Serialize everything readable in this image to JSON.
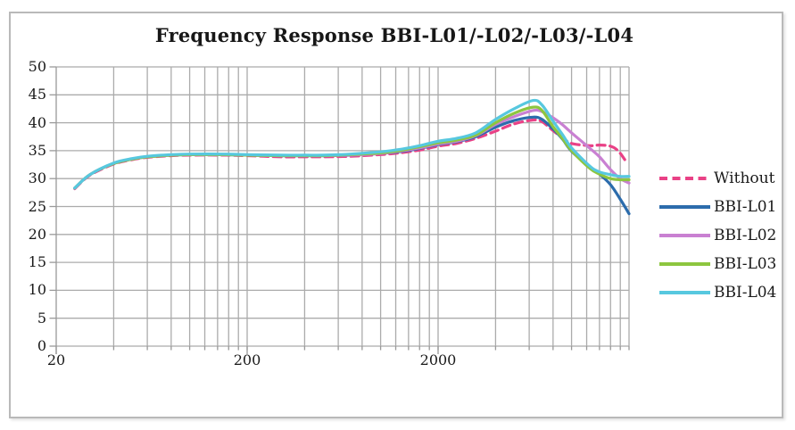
{
  "title": "Frequency Response BBI-L01/-L02/-L03/-L04",
  "chart_data": {
    "type": "line",
    "title": "Frequency Response BBI-L01/-L02/-L03/-L04",
    "x_scale": "log",
    "x_unit": "Hz",
    "x_range": [
      20,
      20000
    ],
    "y_range": [
      0,
      50
    ],
    "y_tick_step": 5,
    "grid": true,
    "legend_position": "right",
    "x_tick_labels": [
      "20",
      "200",
      "2000"
    ],
    "x_tick_values": [
      20,
      200,
      2000
    ],
    "y_tick_labels": [
      "50",
      "45",
      "40",
      "35",
      "30",
      "25",
      "20",
      "15",
      "10",
      "5",
      "0"
    ],
    "grid_color": "#ababab",
    "axis_color": "#999999",
    "text_color": "#1a1a1a",
    "series": [
      {
        "name": "Without",
        "color": "#E94186",
        "line_style": "dashed",
        "points": [
          [
            25,
            28.2
          ],
          [
            30,
            30.6
          ],
          [
            40,
            32.6
          ],
          [
            50,
            33.4
          ],
          [
            60,
            33.8
          ],
          [
            80,
            34.1
          ],
          [
            100,
            34.2
          ],
          [
            150,
            34.2
          ],
          [
            200,
            34.1
          ],
          [
            300,
            33.9
          ],
          [
            400,
            33.9
          ],
          [
            500,
            33.9
          ],
          [
            700,
            34.0
          ],
          [
            1000,
            34.3
          ],
          [
            1250,
            34.6
          ],
          [
            1600,
            35.1
          ],
          [
            2000,
            35.8
          ],
          [
            2500,
            36.3
          ],
          [
            3150,
            37.2
          ],
          [
            4000,
            38.5
          ],
          [
            5000,
            39.8
          ],
          [
            6300,
            40.5
          ],
          [
            7000,
            40.2
          ],
          [
            8000,
            38.6
          ],
          [
            9000,
            37.3
          ],
          [
            10000,
            36.3
          ],
          [
            12500,
            35.9
          ],
          [
            14000,
            36.0
          ],
          [
            16000,
            35.8
          ],
          [
            17500,
            35.0
          ],
          [
            19000,
            33.4
          ]
        ]
      },
      {
        "name": "BBI-L01",
        "color": "#2C6CAC",
        "line_style": "solid",
        "points": [
          [
            25,
            28.3
          ],
          [
            30,
            30.7
          ],
          [
            40,
            32.7
          ],
          [
            50,
            33.5
          ],
          [
            60,
            33.9
          ],
          [
            80,
            34.2
          ],
          [
            100,
            34.3
          ],
          [
            150,
            34.3
          ],
          [
            200,
            34.2
          ],
          [
            300,
            34.1
          ],
          [
            400,
            34.1
          ],
          [
            500,
            34.1
          ],
          [
            700,
            34.2
          ],
          [
            1000,
            34.5
          ],
          [
            1250,
            34.8
          ],
          [
            1600,
            35.4
          ],
          [
            2000,
            36.1
          ],
          [
            2500,
            36.6
          ],
          [
            3150,
            37.5
          ],
          [
            4000,
            39.2
          ],
          [
            5000,
            40.4
          ],
          [
            6300,
            41.0
          ],
          [
            7000,
            40.6
          ],
          [
            8000,
            38.9
          ],
          [
            9000,
            37.0
          ],
          [
            10000,
            34.9
          ],
          [
            12500,
            32.0
          ],
          [
            14000,
            30.8
          ],
          [
            16000,
            28.9
          ],
          [
            18000,
            26.3
          ],
          [
            20000,
            23.7
          ]
        ]
      },
      {
        "name": "BBI-L02",
        "color": "#C980D2",
        "line_style": "solid",
        "points": [
          [
            25,
            28.3
          ],
          [
            30,
            30.7
          ],
          [
            40,
            32.7
          ],
          [
            50,
            33.5
          ],
          [
            60,
            33.9
          ],
          [
            80,
            34.2
          ],
          [
            100,
            34.3
          ],
          [
            150,
            34.3
          ],
          [
            200,
            34.2
          ],
          [
            300,
            34.1
          ],
          [
            400,
            34.1
          ],
          [
            500,
            34.1
          ],
          [
            700,
            34.2
          ],
          [
            1000,
            34.5
          ],
          [
            1250,
            34.9
          ],
          [
            1600,
            35.5
          ],
          [
            2000,
            36.2
          ],
          [
            2500,
            36.7
          ],
          [
            3150,
            37.7
          ],
          [
            4000,
            39.7
          ],
          [
            5000,
            41.1
          ],
          [
            6300,
            42.2
          ],
          [
            7000,
            42.0
          ],
          [
            8000,
            40.9
          ],
          [
            9000,
            39.6
          ],
          [
            10000,
            38.2
          ],
          [
            12500,
            35.4
          ],
          [
            14000,
            33.9
          ],
          [
            16000,
            31.6
          ],
          [
            18000,
            30.0
          ],
          [
            20000,
            29.2
          ]
        ]
      },
      {
        "name": "BBI-L03",
        "color": "#8DC63F",
        "line_style": "solid",
        "points": [
          [
            25,
            28.3
          ],
          [
            30,
            30.7
          ],
          [
            40,
            32.7
          ],
          [
            50,
            33.5
          ],
          [
            60,
            33.9
          ],
          [
            80,
            34.2
          ],
          [
            100,
            34.3
          ],
          [
            150,
            34.3
          ],
          [
            200,
            34.2
          ],
          [
            300,
            34.1
          ],
          [
            400,
            34.1
          ],
          [
            500,
            34.1
          ],
          [
            700,
            34.3
          ],
          [
            1000,
            34.6
          ],
          [
            1250,
            35.0
          ],
          [
            1600,
            35.7
          ],
          [
            2000,
            36.4
          ],
          [
            2500,
            36.9
          ],
          [
            3150,
            37.8
          ],
          [
            4000,
            40.0
          ],
          [
            5000,
            41.7
          ],
          [
            6300,
            42.8
          ],
          [
            7000,
            42.2
          ],
          [
            8000,
            39.3
          ],
          [
            9000,
            37.1
          ],
          [
            10000,
            35.0
          ],
          [
            12500,
            31.8
          ],
          [
            14000,
            30.8
          ],
          [
            16000,
            30.0
          ],
          [
            18000,
            29.8
          ],
          [
            20000,
            29.8
          ]
        ]
      },
      {
        "name": "BBI-L04",
        "color": "#57C8DF",
        "line_style": "solid",
        "points": [
          [
            25,
            28.3
          ],
          [
            30,
            30.7
          ],
          [
            40,
            32.8
          ],
          [
            50,
            33.6
          ],
          [
            60,
            34.0
          ],
          [
            80,
            34.3
          ],
          [
            100,
            34.4
          ],
          [
            150,
            34.4
          ],
          [
            200,
            34.3
          ],
          [
            300,
            34.2
          ],
          [
            400,
            34.2
          ],
          [
            500,
            34.2
          ],
          [
            700,
            34.4
          ],
          [
            1000,
            34.8
          ],
          [
            1250,
            35.2
          ],
          [
            1600,
            35.9
          ],
          [
            2000,
            36.7
          ],
          [
            2500,
            37.2
          ],
          [
            3150,
            38.2
          ],
          [
            4000,
            40.6
          ],
          [
            5000,
            42.5
          ],
          [
            6300,
            44.0
          ],
          [
            7000,
            43.2
          ],
          [
            8000,
            40.3
          ],
          [
            9000,
            37.8
          ],
          [
            10000,
            35.5
          ],
          [
            12500,
            32.2
          ],
          [
            14000,
            31.2
          ],
          [
            16000,
            30.7
          ],
          [
            18000,
            30.4
          ],
          [
            20000,
            30.4
          ]
        ]
      }
    ]
  }
}
